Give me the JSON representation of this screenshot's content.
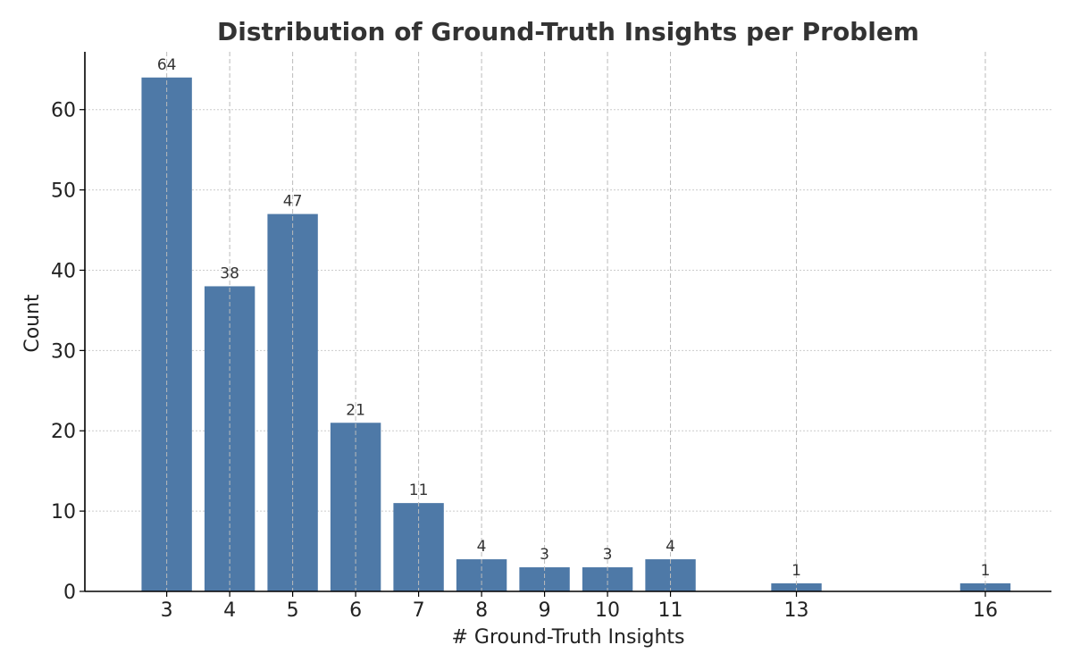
{
  "chart_data": {
    "type": "bar",
    "title": "Distribution of Ground-Truth Insights per Problem",
    "xlabel": "# Ground-Truth Insights",
    "ylabel": "Count",
    "x": [
      3,
      4,
      5,
      6,
      7,
      8,
      9,
      10,
      11,
      13,
      16
    ],
    "values": [
      64,
      38,
      47,
      21,
      11,
      4,
      3,
      3,
      4,
      1,
      1
    ],
    "data_labels": [
      "64",
      "38",
      "47",
      "21",
      "11",
      "4",
      "3",
      "3",
      "4",
      "1",
      "1"
    ],
    "xticks": [
      "3",
      "4",
      "5",
      "6",
      "7",
      "8",
      "9",
      "10",
      "11",
      "13",
      "16"
    ],
    "yticks": [
      "0",
      "10",
      "20",
      "30",
      "40",
      "50",
      "60"
    ],
    "xlim": [
      1.7,
      17.05
    ],
    "ylim": [
      0,
      67.2
    ],
    "grid": true,
    "legend": "none",
    "colors": {
      "bar": "#4e79a7"
    }
  }
}
